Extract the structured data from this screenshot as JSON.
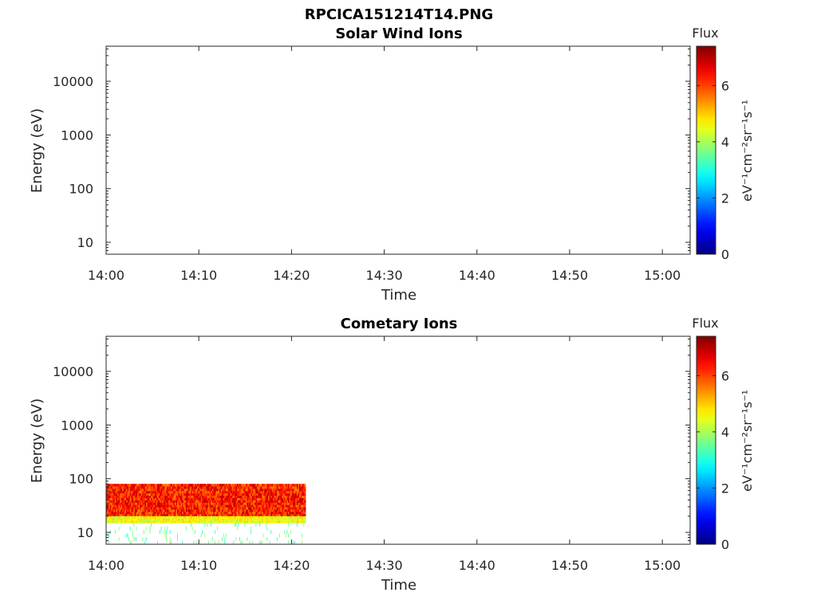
{
  "figure": {
    "file_title": "RPCICA151214T14.PNG"
  },
  "chart_data": [
    {
      "type": "heatmap",
      "title": "Solar Wind Ions",
      "xlabel": "Time",
      "ylabel": "Energy (eV)",
      "x_ticks": [
        "14:00",
        "14:10",
        "14:20",
        "14:30",
        "14:40",
        "14:50",
        "15:00"
      ],
      "xlim": [
        "14:00",
        "15:03"
      ],
      "y_scale": "log",
      "y_ticks": [
        10,
        100,
        1000,
        10000
      ],
      "y_tick_labels": [
        "10",
        "100",
        "1000",
        "10000"
      ],
      "ylim": [
        6,
        45000
      ],
      "colorbar": {
        "title": "Flux",
        "label": "eV⁻¹cm⁻²sr⁻¹s⁻¹",
        "ticks": [
          "0",
          "2",
          "4",
          "6"
        ],
        "range": [
          0,
          7.4
        ],
        "colormap": "jet"
      },
      "data": []
    },
    {
      "type": "heatmap",
      "title": "Cometary Ions",
      "xlabel": "Time",
      "ylabel": "Energy (eV)",
      "x_ticks": [
        "14:00",
        "14:10",
        "14:20",
        "14:30",
        "14:40",
        "14:50",
        "15:00"
      ],
      "xlim": [
        "14:00",
        "15:03"
      ],
      "y_scale": "log",
      "y_ticks": [
        10,
        100,
        1000,
        10000
      ],
      "y_tick_labels": [
        "10",
        "100",
        "1000",
        "10000"
      ],
      "ylim": [
        6,
        45000
      ],
      "colorbar": {
        "title": "Flux",
        "label": "eV⁻¹cm⁻²sr⁻¹s⁻¹",
        "ticks": [
          "0",
          "2",
          "4",
          "6"
        ],
        "range": [
          0,
          7.4
        ],
        "colormap": "jet"
      },
      "data": [
        {
          "time_start": "14:00",
          "time_end": "14:21:30",
          "energy_min": 20,
          "energy_max": 80,
          "flux_range": [
            5.5,
            7.0
          ]
        },
        {
          "time_start": "14:00",
          "time_end": "14:21:30",
          "energy_min": 15,
          "energy_max": 20,
          "flux_range": [
            4.0,
            5.0
          ]
        },
        {
          "time_start": "14:00",
          "time_end": "14:21:30",
          "energy_min": 6,
          "energy_max": 15,
          "flux_range": [
            3.0,
            4.0
          ]
        }
      ]
    }
  ]
}
